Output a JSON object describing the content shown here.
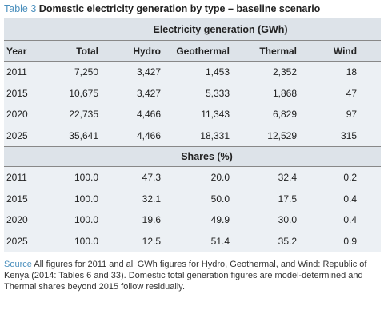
{
  "caption": {
    "label": "Table 3",
    "title": "Domestic electricity generation by type – baseline scenario"
  },
  "table": {
    "group_header": "Electricity generation (GWh)",
    "columns": [
      "Year",
      "Total",
      "Hydro",
      "Geothermal",
      "Thermal",
      "Wind"
    ],
    "generation_rows": [
      [
        "2011",
        "7,250",
        "3,427",
        "1,453",
        "2,352",
        "18"
      ],
      [
        "2015",
        "10,675",
        "3,427",
        "5,333",
        "1,868",
        "47"
      ],
      [
        "2020",
        "22,735",
        "4,466",
        "11,343",
        "6,829",
        "97"
      ],
      [
        "2025",
        "35,641",
        "4,466",
        "18,331",
        "12,529",
        "315"
      ]
    ],
    "shares_header": "Shares (%)",
    "shares_rows": [
      [
        "2011",
        "100.0",
        "47.3",
        "20.0",
        "32.4",
        "0.2"
      ],
      [
        "2015",
        "100.0",
        "32.1",
        "50.0",
        "17.5",
        "0.4"
      ],
      [
        "2020",
        "100.0",
        "19.6",
        "49.9",
        "30.0",
        "0.4"
      ],
      [
        "2025",
        "100.0",
        "12.5",
        "51.4",
        "35.2",
        "0.9"
      ]
    ]
  },
  "source": {
    "label": "Source",
    "text": "All figures for 2011 and all GWh figures for Hydro, Geothermal, and Wind: Republic of Kenya (2014: Tables 6 and 33). Domestic total generation figures are model-determined and Thermal shares beyond 2015 follow residually."
  }
}
